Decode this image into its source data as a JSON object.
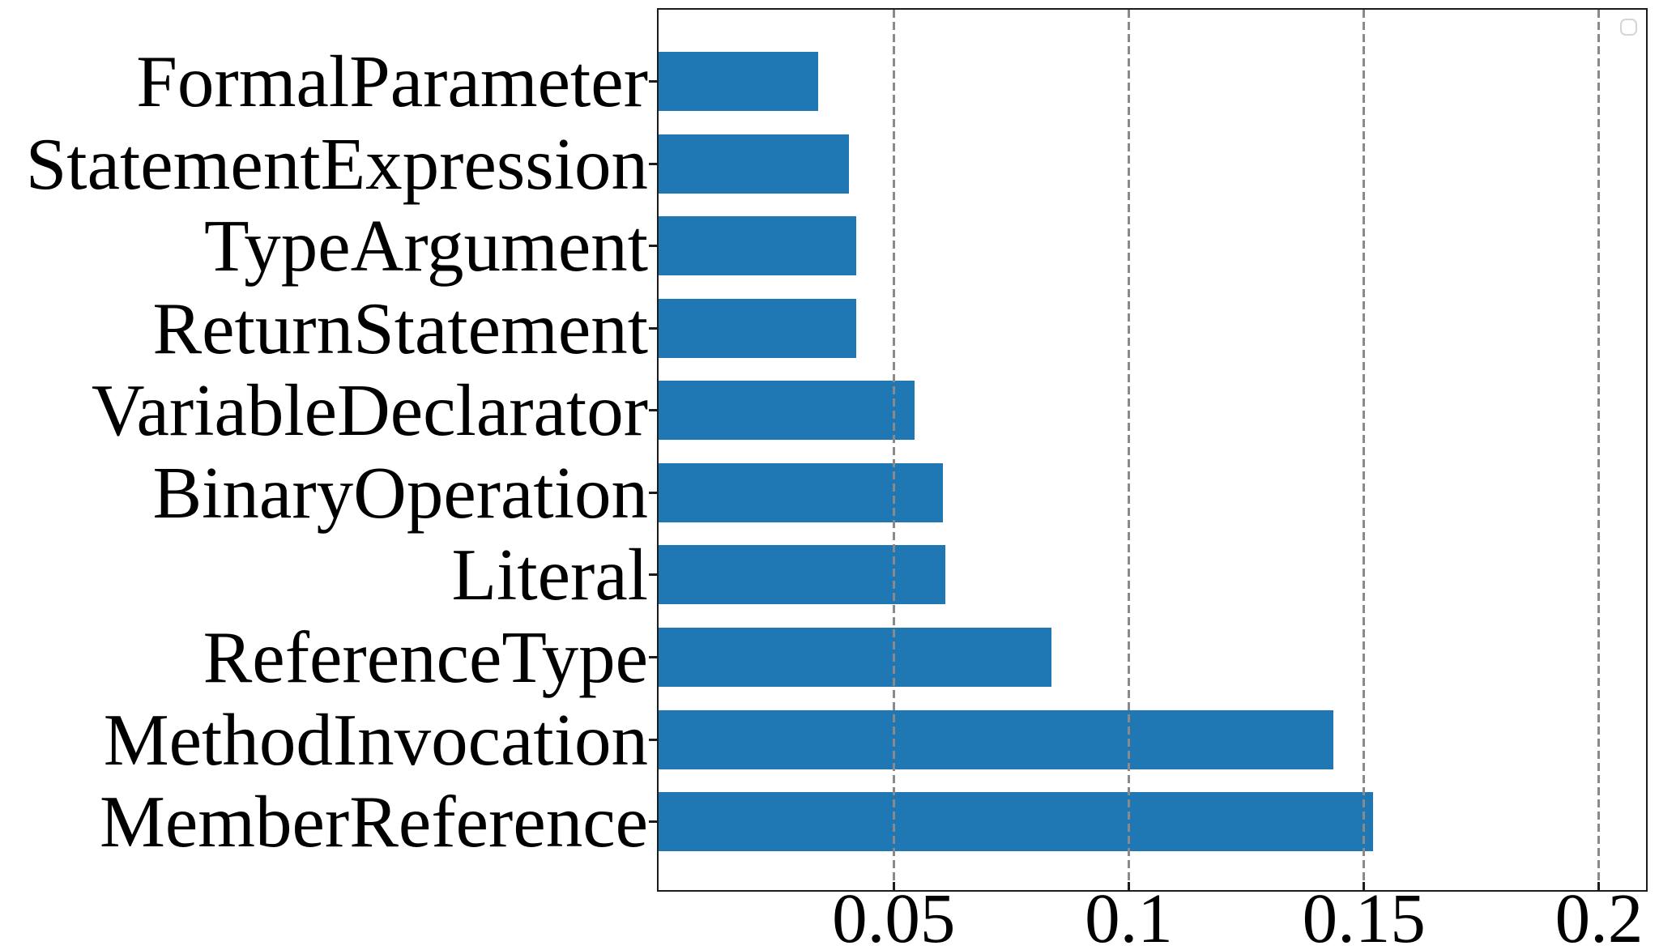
{
  "chart_data": {
    "type": "bar",
    "orientation": "horizontal",
    "title": "",
    "xlabel": "",
    "ylabel": "",
    "categories": [
      "FormalParameter",
      "StatementExpression",
      "TypeArgument",
      "ReturnStatement",
      "VariableDeclarator",
      "BinaryOperation",
      "Literal",
      "ReferenceType",
      "MethodInvocation",
      "MemberReference"
    ],
    "values": [
      0.034,
      0.0405,
      0.042,
      0.042,
      0.0545,
      0.0605,
      0.061,
      0.0835,
      0.1435,
      0.152
    ],
    "xlim": [
      0,
      0.21
    ],
    "xticks": [
      0.05,
      0.1,
      0.15,
      0.2
    ],
    "xtick_labels": [
      "0.05",
      "0.1",
      "0.15",
      "0.2"
    ],
    "grid": {
      "show": true,
      "axis": "x",
      "style": "dashed",
      "color": "#8a8a8a",
      "drawn_above_bars": true
    },
    "bar_color": "#1f77b4",
    "spine_color": "#1c1c1c",
    "legend": {
      "visible": true,
      "entries": [],
      "position": "upper right"
    }
  }
}
